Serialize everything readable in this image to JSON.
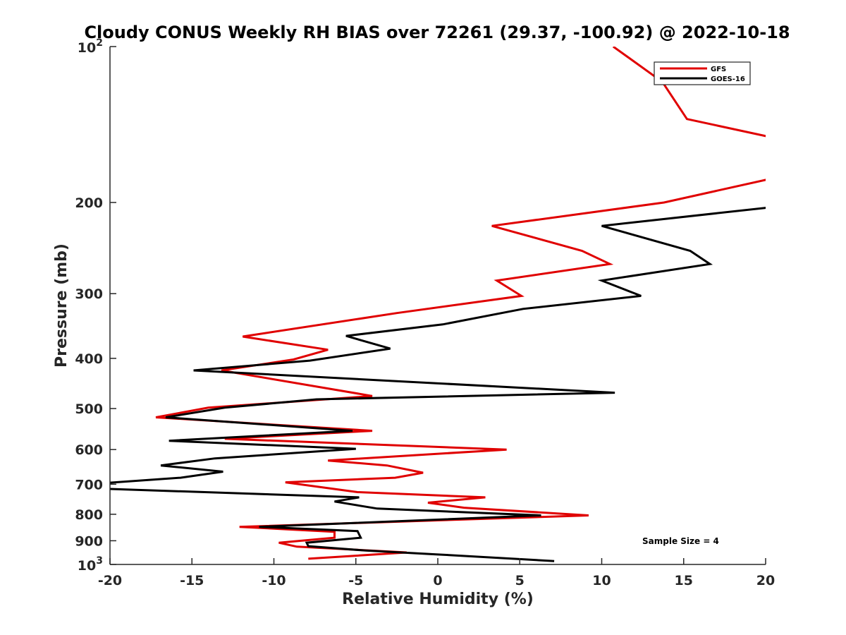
{
  "chart_data": {
    "type": "line",
    "title": "Cloudy CONUS Weekly RH BIAS over 72261 (29.37, -100.92) @ 2022-10-18",
    "xlabel": "Relative Humidity (%)",
    "ylabel": "Pressure (mb)",
    "xlim": [
      -20,
      20
    ],
    "ylim": [
      100,
      1000
    ],
    "y_scale": "log",
    "y_reversed": true,
    "grid": false,
    "legend_position": "top-right",
    "x_ticks": [
      {
        "value": -20,
        "label": "-20"
      },
      {
        "value": -15,
        "label": "-15"
      },
      {
        "value": -10,
        "label": "-10"
      },
      {
        "value": -5,
        "label": "-5"
      },
      {
        "value": 0,
        "label": "0"
      },
      {
        "value": 5,
        "label": "5"
      },
      {
        "value": 10,
        "label": "10"
      },
      {
        "value": 15,
        "label": "15"
      },
      {
        "value": 20,
        "label": "20"
      }
    ],
    "y_ticks": [
      {
        "value": 100,
        "base": "10",
        "exp": "2"
      },
      {
        "value": 200,
        "label": "200"
      },
      {
        "value": 300,
        "label": "300"
      },
      {
        "value": 400,
        "label": "400"
      },
      {
        "value": 500,
        "label": "500"
      },
      {
        "value": 600,
        "label": "600"
      },
      {
        "value": 700,
        "label": "700"
      },
      {
        "value": 800,
        "label": "800"
      },
      {
        "value": 900,
        "label": "900"
      },
      {
        "value": 1000,
        "base": "10",
        "exp": "3"
      }
    ],
    "annotation": "Sample Size = 4",
    "series": [
      {
        "name": "GFS",
        "color": "#e00000",
        "points": [
          [
            10.7,
            100
          ],
          [
            13.7,
            117
          ],
          [
            15.2,
            138
          ],
          [
            20.5,
            150
          ],
          [
            20.3,
            180
          ],
          [
            13.8,
            200
          ],
          [
            3.3,
            222
          ],
          [
            8.8,
            248
          ],
          [
            10.5,
            263
          ],
          [
            3.6,
            283
          ],
          [
            5.1,
            303
          ],
          [
            -2.5,
            327
          ],
          [
            -11.9,
            363
          ],
          [
            -6.7,
            385
          ],
          [
            -8.8,
            402
          ],
          [
            -13.2,
            422
          ],
          [
            -4.0,
            473
          ],
          [
            -14.0,
            498
          ],
          [
            -17.2,
            520
          ],
          [
            -4.0,
            552
          ],
          [
            -13.0,
            572
          ],
          [
            4.2,
            600
          ],
          [
            -6.7,
            630
          ],
          [
            -3.1,
            644
          ],
          [
            -0.9,
            665
          ],
          [
            -2.6,
            680
          ],
          [
            -9.3,
            694
          ],
          [
            -4.9,
            725
          ],
          [
            2.9,
            742
          ],
          [
            -0.6,
            760
          ],
          [
            1.6,
            777
          ],
          [
            9.2,
            804
          ],
          [
            -12.1,
            846
          ],
          [
            -6.3,
            865
          ],
          [
            -6.3,
            888
          ],
          [
            -9.7,
            908
          ],
          [
            -8.6,
            924
          ],
          [
            -1.9,
            948
          ],
          [
            -7.9,
            975
          ]
        ]
      },
      {
        "name": "GOES-16",
        "color": "#000000",
        "points": [
          [
            20.5,
            204
          ],
          [
            10.0,
            222
          ],
          [
            15.4,
            248
          ],
          [
            16.6,
            263
          ],
          [
            10.0,
            283
          ],
          [
            12.4,
            303
          ],
          [
            5.2,
            321
          ],
          [
            0.3,
            344
          ],
          [
            -5.6,
            362
          ],
          [
            -2.9,
            383
          ],
          [
            -7.8,
            404
          ],
          [
            -14.9,
            422
          ],
          [
            10.8,
            466
          ],
          [
            -7.4,
            480
          ],
          [
            -13.0,
            498
          ],
          [
            -16.6,
            520
          ],
          [
            -5.2,
            552
          ],
          [
            -16.4,
            577
          ],
          [
            -5.0,
            598
          ],
          [
            -13.6,
            624
          ],
          [
            -16.9,
            644
          ],
          [
            -13.1,
            662
          ],
          [
            -15.7,
            680
          ],
          [
            -20.5,
            697
          ],
          [
            -20.5,
            714
          ],
          [
            -4.8,
            742
          ],
          [
            -6.3,
            756
          ],
          [
            -3.7,
            780
          ],
          [
            6.3,
            804
          ],
          [
            -10.9,
            846
          ],
          [
            -4.9,
            862
          ],
          [
            -4.7,
            888
          ],
          [
            -8.0,
            908
          ],
          [
            -7.9,
            922
          ],
          [
            -4.4,
            940
          ],
          [
            -0.1,
            956
          ],
          [
            7.1,
            985
          ]
        ]
      }
    ]
  }
}
